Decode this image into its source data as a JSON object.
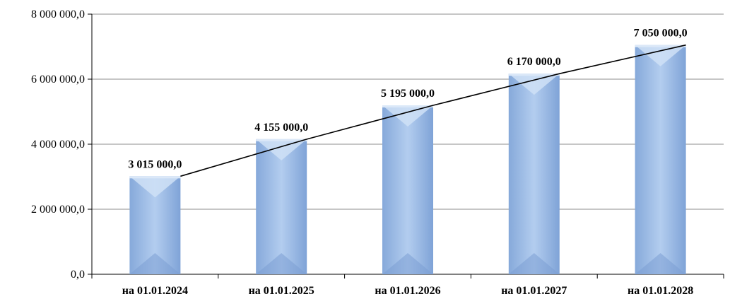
{
  "chart_data": {
    "type": "bar",
    "categories": [
      "на 01.01.2024",
      "на 01.01.2025",
      "на 01.01.2026",
      "на 01.01.2027",
      "на 01.01.2028"
    ],
    "values": [
      3015000,
      4155000,
      5195000,
      6170000,
      7050000
    ],
    "data_labels": [
      "3 015 000,0",
      "4 155 000,0",
      "5 195 000,0",
      "6 170 000,0",
      "7 050 000,0"
    ],
    "yticks": [
      0,
      2000000,
      4000000,
      6000000,
      8000000
    ],
    "ytick_labels": [
      "0,0",
      "2 000 000,0",
      "4 000 000,0",
      "6 000 000,0",
      "8 000 000,0"
    ],
    "ylim": [
      0,
      8000000
    ],
    "grid": true,
    "legend": "none",
    "trend_line": true,
    "colors": {
      "bar_light": "#c9dcf3",
      "bar_mid": "#9cbbe6",
      "bar_dark": "#7ea3d8",
      "grid": "#8c8c8c",
      "axis": "#000000",
      "trend": "#000000"
    }
  }
}
